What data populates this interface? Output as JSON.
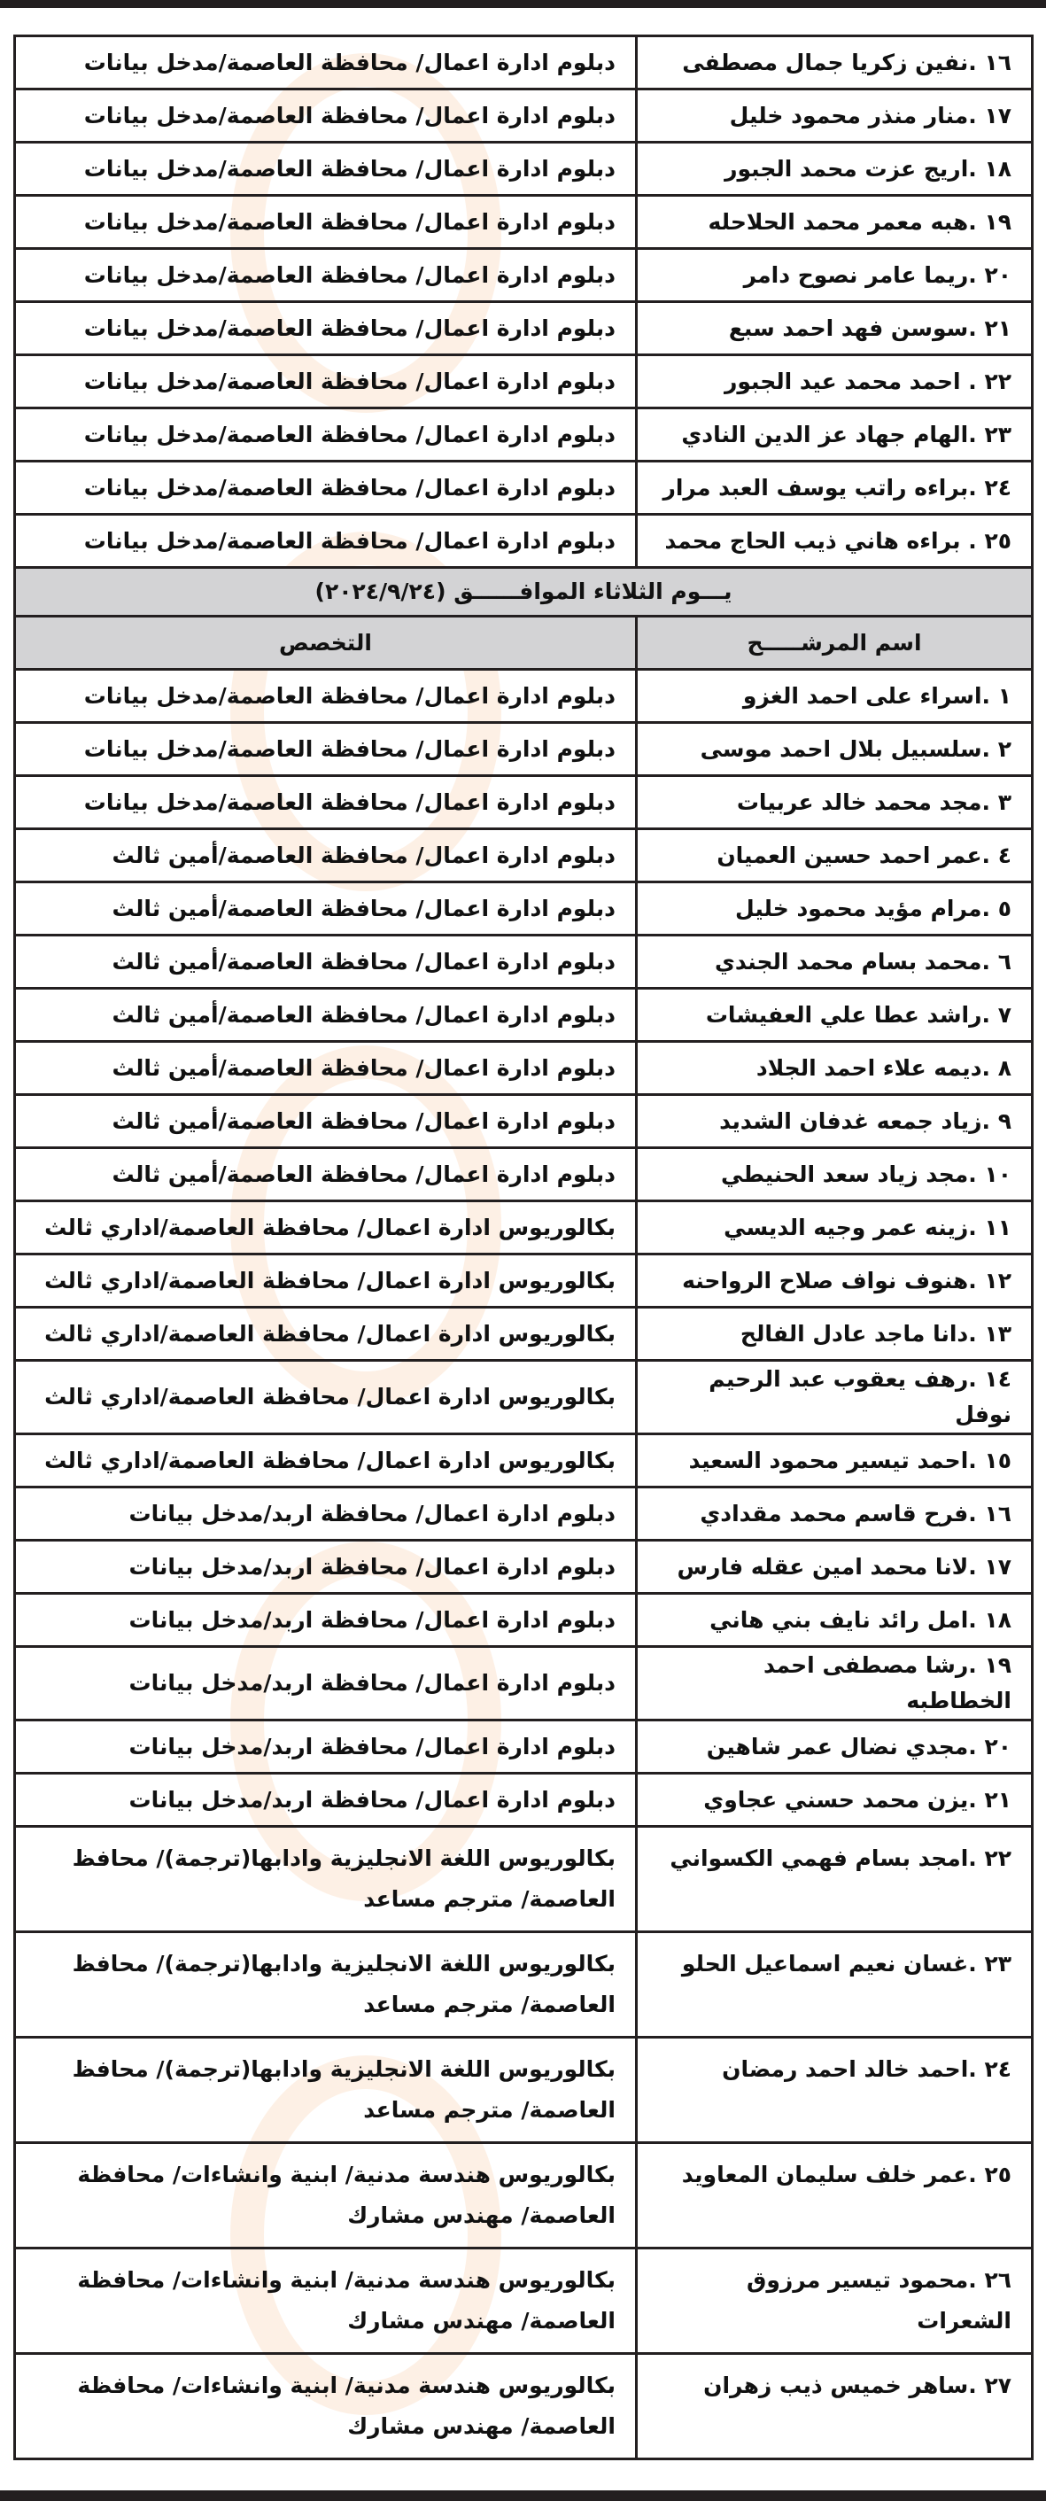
{
  "section1": {
    "rows": [
      {
        "name": "١٦ .نفين زكريا جمال مصطفى",
        "spec": "دبلوم ادارة اعمال/ محافظة العاصمة/مدخل بيانات"
      },
      {
        "name": "١٧ .منار منذر محمود خليل",
        "spec": "دبلوم ادارة اعمال/ محافظة العاصمة/مدخل بيانات"
      },
      {
        "name": "١٨ .اريج عزت محمد الجبور",
        "spec": "دبلوم ادارة اعمال/ محافظة العاصمة/مدخل بيانات"
      },
      {
        "name": "١٩ .هبه معمر محمد الحلاحله",
        "spec": "دبلوم ادارة اعمال/ محافظة العاصمة/مدخل بيانات"
      },
      {
        "name": "٢٠ .ريما عامر نصوح دامر",
        "spec": "دبلوم ادارة اعمال/ محافظة العاصمة/مدخل بيانات"
      },
      {
        "name": "٢١ .سوسن فهد احمد سبع",
        "spec": "دبلوم ادارة اعمال/ محافظة العاصمة/مدخل بيانات"
      },
      {
        "name": "٢٢ . احمد محمد عيد الجبور",
        "spec": "دبلوم ادارة اعمال/ محافظة العاصمة/مدخل بيانات"
      },
      {
        "name": "٢٣ .الهام جهاد عز الدين النادي",
        "spec": "دبلوم ادارة اعمال/ محافظة العاصمة/مدخل بيانات"
      },
      {
        "name": "٢٤ .براءه راتب يوسف العبد مرار",
        "spec": "دبلوم ادارة اعمال/ محافظة العاصمة/مدخل بيانات"
      },
      {
        "name": "٢٥ . براءه هاني ذيب الحاج محمد",
        "spec": "دبلوم ادارة اعمال/ محافظة العاصمة/مدخل بيانات"
      }
    ]
  },
  "section2": {
    "day_header": "يـــوم الثلاثاء الموافــــــق (٢٠٢٤/٩/٢٤)",
    "col_name": "اسم المرشـــــح",
    "col_spec": "التخصص",
    "rows": [
      {
        "name": "١ .اسراء على احمد الغزو",
        "spec": "دبلوم ادارة اعمال/ محافظة العاصمة/مدخل بيانات"
      },
      {
        "name": "٢ .سلسبيل بلال احمد موسى",
        "spec": "دبلوم ادارة اعمال/ محافظة العاصمة/مدخل بيانات"
      },
      {
        "name": "٣ .مجد محمد خالد عربيات",
        "spec": "دبلوم ادارة اعمال/ محافظة العاصمة/مدخل بيانات"
      },
      {
        "name": "٤ .عمر احمد حسين العميان",
        "spec": "دبلوم ادارة اعمال/ محافظة العاصمة/أمين ثالث"
      },
      {
        "name": "٥ .مرام مؤيد محمود خليل",
        "spec": "دبلوم ادارة اعمال/ محافظة العاصمة/أمين ثالث"
      },
      {
        "name": "٦ .محمد بسام محمد الجندي",
        "spec": "دبلوم ادارة اعمال/ محافظة العاصمة/أمين ثالث"
      },
      {
        "name": "٧ .راشد عطا علي العفيشات",
        "spec": "دبلوم ادارة اعمال/ محافظة العاصمة/أمين ثالث"
      },
      {
        "name": "٨ .ديمه علاء احمد الجلاد",
        "spec": "دبلوم ادارة اعمال/ محافظة العاصمة/أمين ثالث"
      },
      {
        "name": "٩ .زياد جمعه غدفان الشديد",
        "spec": "دبلوم ادارة اعمال/ محافظة العاصمة/أمين ثالث"
      },
      {
        "name": "١٠ .مجد زياد سعد الحنيطي",
        "spec": "دبلوم ادارة اعمال/ محافظة العاصمة/أمين ثالث"
      },
      {
        "name": "١١ .زينه عمر وجيه الديسي",
        "spec": "بكالوريوس ادارة اعمال/ محافظة العاصمة/اداري ثالث"
      },
      {
        "name": "١٢ .هنوف نواف صلاح الرواحنه",
        "spec": "بكالوريوس ادارة اعمال/ محافظة العاصمة/اداري ثالث"
      },
      {
        "name": "١٣ .دانا ماجد عادل الفالح",
        "spec": "بكالوريوس ادارة اعمال/ محافظة العاصمة/اداري ثالث"
      },
      {
        "name": "١٤ .رهف يعقوب عبد الرحيم نوفل",
        "spec": "بكالوريوس ادارة اعمال/ محافظة العاصمة/اداري ثالث"
      },
      {
        "name": "١٥ .احمد تيسير محمود السعيد",
        "spec": "بكالوريوس ادارة اعمال/ محافظة العاصمة/اداري ثالث"
      },
      {
        "name": "١٦ .فرح قاسم محمد مقدادي",
        "spec": "دبلوم ادارة اعمال/ محافظة اربد/مدخل بيانات"
      },
      {
        "name": "١٧ .لانا محمد امين عقله فارس",
        "spec": "دبلوم ادارة اعمال/ محافظة اربد/مدخل بيانات"
      },
      {
        "name": "١٨ .امل رائد نايف بني هاني",
        "spec": "دبلوم ادارة اعمال/ محافظة اربد/مدخل بيانات"
      },
      {
        "name": "١٩ .رشا مصطفى احمد الخطاطبه",
        "spec": "دبلوم ادارة اعمال/ محافظة اربد/مدخل بيانات"
      },
      {
        "name": "٢٠ .مجدي نضال عمر شاهين",
        "spec": "دبلوم ادارة اعمال/ محافظة اربد/مدخل بيانات"
      },
      {
        "name": "٢١ .يزن محمد حسني عجاوي",
        "spec": "دبلوم ادارة اعمال/ محافظة اربد/مدخل بيانات"
      },
      {
        "name": "٢٢ .امجد بسام فهمي الكسواني",
        "spec": "بكالوريوس اللغة الانجليزية وادابها(ترجمة)/ محافظ العاصمة/ مترجم مساعد"
      },
      {
        "name": "٢٣ .غسان نعيم اسماعيل الحلو",
        "spec": "بكالوريوس اللغة الانجليزية وادابها(ترجمة)/ محافظ العاصمة/ مترجم مساعد"
      },
      {
        "name": "٢٤ .احمد خالد احمد رمضان",
        "spec": "بكالوريوس اللغة الانجليزية وادابها(ترجمة)/ محافظ العاصمة/ مترجم مساعد"
      },
      {
        "name": "٢٥ .عمر خلف سليمان المعاويد",
        "spec": "بكالوريوس هندسة مدنية/ ابنية وانشاءات/ محافظة العاصمة/ مهندس مشارك"
      },
      {
        "name": "٢٦ .محمود تيسير مرزوق الشعرات",
        "spec": "بكالوريوس هندسة مدنية/ ابنية وانشاءات/ محافظة العاصمة/ مهندس مشارك"
      },
      {
        "name": "٢٧ .ساهر خميس ذيب زهران",
        "spec": "بكالوريوس هندسة مدنية/ ابنية وانشاءات/ محافظة العاصمة/ مهندس مشارك"
      }
    ]
  },
  "colors": {
    "header_bg": "#d3d3d5",
    "border": "#231f20",
    "watermark": "#f5aa6e"
  }
}
